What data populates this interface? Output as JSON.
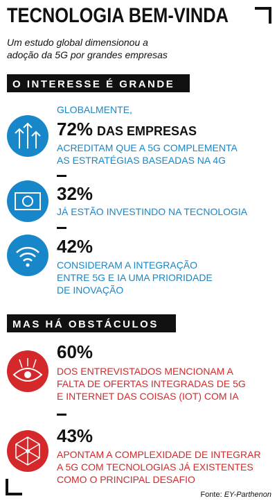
{
  "title": "TECNOLOGIA BEM-VINDA",
  "subtitle": [
    "Um estudo global dimensionou a",
    "adoção da 5G por grandes empresas"
  ],
  "sections": [
    {
      "heading": "O INTERESSE É GRANDE",
      "items": [
        {
          "intro": "GLOBALMENTE,",
          "figure": "72%",
          "suffix": "DAS EMPRESAS",
          "lines": [
            "ACREDITAM QUE A 5G COMPLEMENTA",
            "AS ESTRATÉGIAS BASEADAS NA 4G"
          ]
        },
        {
          "figure": "32%",
          "lines": [
            "JÁ ESTÃO INVESTINDO NA TECNOLOGIA"
          ]
        },
        {
          "figure": "42%",
          "lines": [
            "CONSIDERAM A INTEGRAÇÃO",
            "ENTRE 5G E IA UMA PRIORIDADE",
            "DE INOVAÇÃO"
          ]
        }
      ]
    },
    {
      "heading": "MAS HÁ OBSTÁCULOS",
      "items": [
        {
          "figure": "60%",
          "lines": [
            "DOS ENTREVISTADOS MENCIONAM A",
            "FALTA DE OFERTAS INTEGRADAS DE 5G",
            "E INTERNET DAS COISAS (IOT) COM IA"
          ]
        },
        {
          "figure": "43%",
          "lines": [
            "APONTAM A COMPLEXIDADE DE INTEGRAR",
            "A 5G COM TECNOLOGIAS JÁ EXISTENTES",
            "COMO O PRINCIPAL DESAFIO"
          ]
        }
      ]
    }
  ],
  "source": {
    "label": "Fonte:",
    "name": "EY-Parthenon"
  }
}
